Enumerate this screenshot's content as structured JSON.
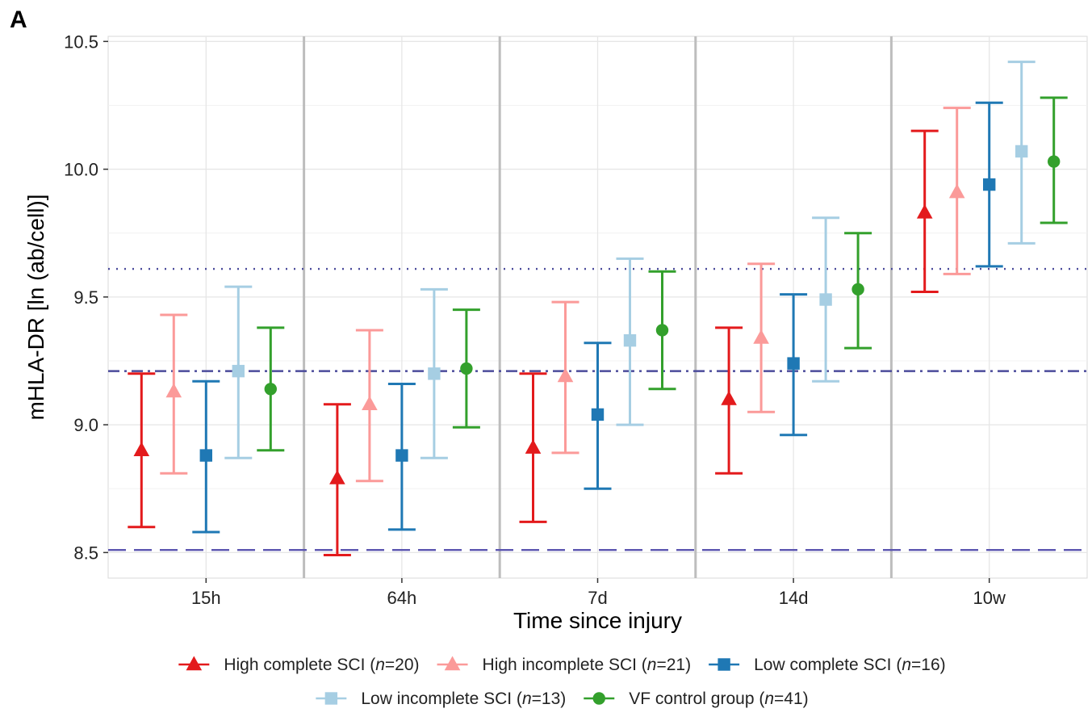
{
  "panel_label": "A",
  "chart_data": {
    "type": "scatter",
    "subtype": "point-with-error-bars",
    "title": "",
    "xlabel": "Time since injury",
    "ylabel": "mHLA-DR [ln (ab/cell)]",
    "categories": [
      "15h",
      "64h",
      "7d",
      "14d",
      "10w"
    ],
    "ylim": [
      8.4,
      10.52
    ],
    "y_ticks": [
      8.5,
      9.0,
      9.5,
      10.0,
      10.5
    ],
    "y_tick_labels": [
      "8.5",
      "9.0",
      "9.5",
      "10.0",
      "10.5"
    ],
    "grid": true,
    "legend_position": "bottom",
    "series": [
      {
        "name": "High complete SCI",
        "n_label": "20",
        "color": "#e31a1c",
        "marker": "triangle",
        "values": [
          8.9,
          8.79,
          8.91,
          9.1,
          9.83
        ],
        "lower": [
          8.6,
          8.49,
          8.62,
          8.81,
          9.52
        ],
        "upper": [
          9.2,
          9.08,
          9.2,
          9.38,
          10.15
        ]
      },
      {
        "name": "High incomplete SCI",
        "n_label": "21",
        "color": "#fb9a99",
        "marker": "triangle",
        "values": [
          9.13,
          9.08,
          9.19,
          9.34,
          9.91
        ],
        "lower": [
          8.81,
          8.78,
          8.89,
          9.05,
          9.59
        ],
        "upper": [
          9.43,
          9.37,
          9.48,
          9.63,
          10.24
        ]
      },
      {
        "name": "Low complete SCI",
        "n_label": "16",
        "color": "#1f78b4",
        "marker": "square",
        "values": [
          8.88,
          8.88,
          9.04,
          9.24,
          9.94
        ],
        "lower": [
          8.58,
          8.59,
          8.75,
          8.96,
          9.62
        ],
        "upper": [
          9.17,
          9.16,
          9.32,
          9.51,
          10.26
        ]
      },
      {
        "name": "Low incomplete SCI",
        "n_label": "13",
        "color": "#a6cee3",
        "marker": "square",
        "values": [
          9.21,
          9.2,
          9.33,
          9.49,
          10.07
        ],
        "lower": [
          8.87,
          8.87,
          9.0,
          9.17,
          9.71
        ],
        "upper": [
          9.54,
          9.53,
          9.65,
          9.81,
          10.42
        ]
      },
      {
        "name": "VF control group",
        "n_label": "41",
        "color": "#33a02c",
        "marker": "circle",
        "values": [
          9.14,
          9.22,
          9.37,
          9.53,
          10.03
        ],
        "lower": [
          8.9,
          8.99,
          9.14,
          9.3,
          9.79
        ],
        "upper": [
          9.38,
          9.45,
          9.6,
          9.75,
          10.28
        ]
      }
    ],
    "reference_lines": [
      {
        "style": "dotted",
        "value": 9.61,
        "color": "#4b4b9b"
      },
      {
        "style": "dashdot",
        "value": 9.21,
        "color": "#4b4b9b"
      },
      {
        "style": "dashed",
        "value": 8.51,
        "color": "#5b55b0"
      }
    ],
    "legend_n_prefix": "n",
    "legend_n_suffix": ")"
  }
}
